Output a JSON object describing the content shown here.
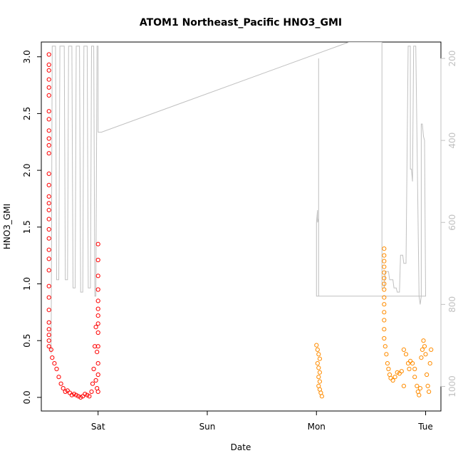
{
  "chart_data": {
    "type": "scatter",
    "title": "ATOM1 Northeast_Pacific HNO3_GMI",
    "xlabel": "Date",
    "ylabel": "HNO3_GMI",
    "x_tick_labels": [
      "Sat",
      "Sun",
      "Mon",
      "Tue"
    ],
    "x_ticks_days": [
      1,
      2,
      3,
      4
    ],
    "xlim_days": [
      0.48,
      4.14
    ],
    "ylim": [
      -0.12,
      3.13
    ],
    "y_ticks": [
      "0.0",
      "0.5",
      "1.0",
      "1.5",
      "2.0",
      "2.5",
      "3.0"
    ],
    "y2_ticks": [
      "200",
      "400",
      "600",
      "800",
      "1000"
    ],
    "y2lim": [
      1060,
      160
    ],
    "y2_color": "#c0c0c0",
    "grid": false,
    "series": [
      {
        "color": "#ff0000",
        "marker": "open-circle",
        "points": [
          [
            0.55,
            3.02
          ],
          [
            0.55,
            2.93
          ],
          [
            0.55,
            2.88
          ],
          [
            0.55,
            2.8
          ],
          [
            0.55,
            2.73
          ],
          [
            0.55,
            2.66
          ],
          [
            0.55,
            2.52
          ],
          [
            0.55,
            2.45
          ],
          [
            0.55,
            2.35
          ],
          [
            0.55,
            2.28
          ],
          [
            0.55,
            2.22
          ],
          [
            0.55,
            2.15
          ],
          [
            0.55,
            1.97
          ],
          [
            0.55,
            1.87
          ],
          [
            0.55,
            1.77
          ],
          [
            0.55,
            1.71
          ],
          [
            0.55,
            1.65
          ],
          [
            0.55,
            1.57
          ],
          [
            0.55,
            1.48
          ],
          [
            0.55,
            1.4
          ],
          [
            0.55,
            1.3
          ],
          [
            0.55,
            1.22
          ],
          [
            0.55,
            1.12
          ],
          [
            0.55,
            0.98
          ],
          [
            0.55,
            0.88
          ],
          [
            0.55,
            0.77
          ],
          [
            0.55,
            0.66
          ],
          [
            0.55,
            0.6
          ],
          [
            0.55,
            0.55
          ],
          [
            0.55,
            0.5
          ],
          [
            0.55,
            0.45
          ],
          [
            0.57,
            0.42
          ],
          [
            0.58,
            0.35
          ],
          [
            0.6,
            0.3
          ],
          [
            0.62,
            0.25
          ],
          [
            0.64,
            0.18
          ],
          [
            0.66,
            0.12
          ],
          [
            0.68,
            0.08
          ],
          [
            0.7,
            0.05
          ],
          [
            0.72,
            0.06
          ],
          [
            0.74,
            0.04
          ],
          [
            0.76,
            0.02
          ],
          [
            0.78,
            0.03
          ],
          [
            0.8,
            0.02
          ],
          [
            0.82,
            0.01
          ],
          [
            0.84,
            0.0
          ],
          [
            0.86,
            0.01
          ],
          [
            0.88,
            0.03
          ],
          [
            0.9,
            0.02
          ],
          [
            0.92,
            0.01
          ],
          [
            0.94,
            0.05
          ],
          [
            0.95,
            0.12
          ],
          [
            0.96,
            0.25
          ],
          [
            0.97,
            0.45
          ],
          [
            0.98,
            0.62
          ],
          [
            0.99,
            0.4
          ],
          [
            1.0,
            0.2
          ],
          [
            1.0,
            0.05
          ],
          [
            0.99,
            0.08
          ],
          [
            0.98,
            0.15
          ],
          [
            1.0,
            0.3
          ],
          [
            1.0,
            0.45
          ],
          [
            1.0,
            0.57
          ],
          [
            1.0,
            0.65
          ],
          [
            1.0,
            0.72
          ],
          [
            1.0,
            0.78
          ],
          [
            1.0,
            0.85
          ],
          [
            1.0,
            0.95
          ],
          [
            1.0,
            1.07
          ],
          [
            1.0,
            1.21
          ],
          [
            1.0,
            1.35
          ]
        ]
      },
      {
        "color": "#ff8c00",
        "marker": "open-circle",
        "points": [
          [
            3.0,
            0.46
          ],
          [
            3.01,
            0.42
          ],
          [
            3.02,
            0.38
          ],
          [
            3.03,
            0.34
          ],
          [
            3.01,
            0.3
          ],
          [
            3.02,
            0.26
          ],
          [
            3.03,
            0.22
          ],
          [
            3.02,
            0.18
          ],
          [
            3.03,
            0.14
          ],
          [
            3.02,
            0.1
          ],
          [
            3.03,
            0.07
          ],
          [
            3.04,
            0.04
          ],
          [
            3.05,
            0.01
          ],
          [
            3.62,
            1.31
          ],
          [
            3.62,
            1.25
          ],
          [
            3.62,
            1.2
          ],
          [
            3.62,
            1.15
          ],
          [
            3.62,
            1.1
          ],
          [
            3.62,
            1.05
          ],
          [
            3.62,
            1.0
          ],
          [
            3.62,
            0.95
          ],
          [
            3.62,
            0.88
          ],
          [
            3.62,
            0.82
          ],
          [
            3.62,
            0.75
          ],
          [
            3.62,
            0.68
          ],
          [
            3.62,
            0.6
          ],
          [
            3.62,
            0.52
          ],
          [
            3.63,
            0.45
          ],
          [
            3.64,
            0.38
          ],
          [
            3.65,
            0.3
          ],
          [
            3.66,
            0.25
          ],
          [
            3.67,
            0.2
          ],
          [
            3.68,
            0.17
          ],
          [
            3.7,
            0.15
          ],
          [
            3.72,
            0.18
          ],
          [
            3.74,
            0.22
          ],
          [
            3.76,
            0.21
          ],
          [
            3.78,
            0.23
          ],
          [
            3.8,
            0.42
          ],
          [
            3.82,
            0.38
          ],
          [
            3.84,
            0.3
          ],
          [
            3.86,
            0.32
          ],
          [
            3.88,
            0.3
          ],
          [
            3.9,
            0.25
          ],
          [
            3.92,
            0.1
          ],
          [
            3.93,
            0.05
          ],
          [
            3.94,
            0.02
          ],
          [
            3.95,
            0.08
          ],
          [
            3.96,
            0.35
          ],
          [
            3.97,
            0.42
          ],
          [
            3.98,
            0.5
          ],
          [
            3.99,
            0.45
          ],
          [
            4.0,
            0.38
          ],
          [
            4.01,
            0.2
          ],
          [
            4.02,
            0.1
          ],
          [
            4.03,
            0.05
          ],
          [
            4.04,
            0.3
          ],
          [
            4.05,
            0.42
          ],
          [
            3.9,
            0.18
          ],
          [
            3.85,
            0.25
          ],
          [
            3.8,
            0.1
          ]
        ]
      }
    ],
    "secondary_line": {
      "color": "#c0c0c0",
      "axis": "y2",
      "points": [
        [
          0.57,
          920
        ],
        [
          0.58,
          170
        ],
        [
          0.61,
          170
        ],
        [
          0.62,
          740
        ],
        [
          0.64,
          740
        ],
        [
          0.65,
          170
        ],
        [
          0.69,
          170
        ],
        [
          0.7,
          740
        ],
        [
          0.72,
          740
        ],
        [
          0.73,
          170
        ],
        [
          0.76,
          170
        ],
        [
          0.77,
          760
        ],
        [
          0.79,
          760
        ],
        [
          0.8,
          170
        ],
        [
          0.83,
          170
        ],
        [
          0.84,
          770
        ],
        [
          0.86,
          770
        ],
        [
          0.87,
          170
        ],
        [
          0.9,
          170
        ],
        [
          0.91,
          760
        ],
        [
          0.93,
          760
        ],
        [
          0.94,
          170
        ],
        [
          0.96,
          170
        ],
        [
          0.97,
          780
        ],
        [
          0.98,
          780
        ],
        [
          0.99,
          170
        ],
        [
          1.0,
          170
        ],
        [
          1.0,
          380
        ],
        [
          1.03,
          380
        ],
        [
          3.3,
          160
        ],
        [
          3.6,
          160
        ],
        [
          3.6,
          170
        ],
        [
          3.6,
          760
        ],
        [
          3.62,
          760
        ],
        [
          3.63,
          720
        ],
        [
          3.66,
          720
        ],
        [
          3.67,
          740
        ],
        [
          3.7,
          740
        ],
        [
          3.71,
          760
        ],
        [
          3.73,
          760
        ],
        [
          3.74,
          770
        ],
        [
          3.76,
          770
        ],
        [
          3.77,
          680
        ],
        [
          3.79,
          680
        ],
        [
          3.8,
          700
        ],
        [
          3.82,
          700
        ],
        [
          3.84,
          170
        ],
        [
          3.86,
          170
        ],
        [
          3.86,
          470
        ],
        [
          3.87,
          470
        ],
        [
          3.88,
          500
        ],
        [
          3.89,
          170
        ],
        [
          3.91,
          170
        ],
        [
          3.94,
          780
        ],
        [
          3.95,
          800
        ],
        [
          3.96,
          780
        ],
        [
          3.96,
          360
        ],
        [
          3.97,
          360
        ],
        [
          3.98,
          390
        ],
        [
          3.99,
          400
        ],
        [
          4.0,
          780
        ],
        [
          3.0,
          780
        ],
        [
          3.0,
          600
        ],
        [
          3.01,
          570
        ],
        [
          3.01,
          600
        ],
        [
          3.02,
          590
        ],
        [
          3.02,
          200
        ],
        [
          3.02,
          780
        ]
      ]
    }
  }
}
